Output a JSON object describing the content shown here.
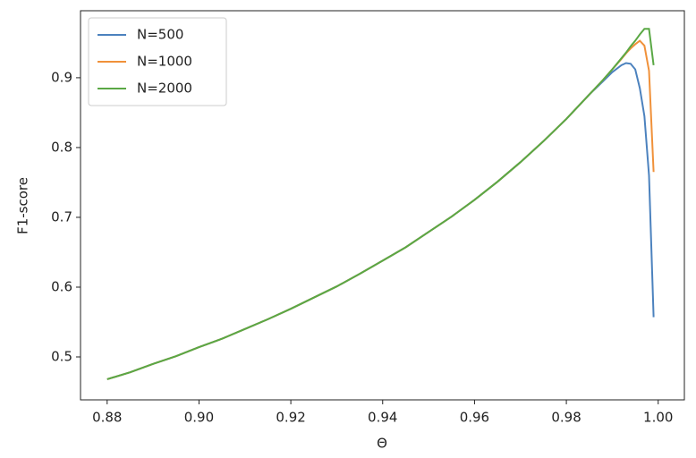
{
  "chart_data": {
    "type": "line",
    "xlabel": "Θ",
    "ylabel": "F1-score",
    "x": [
      0.88,
      0.885,
      0.89,
      0.895,
      0.9,
      0.905,
      0.91,
      0.915,
      0.92,
      0.925,
      0.93,
      0.935,
      0.94,
      0.945,
      0.95,
      0.955,
      0.96,
      0.965,
      0.97,
      0.975,
      0.98,
      0.985,
      0.988,
      0.99,
      0.992,
      0.993,
      0.994,
      0.995,
      0.996,
      0.997,
      0.998,
      0.999
    ],
    "series": [
      {
        "name": "N=500",
        "color": "#4c82be",
        "values": [
          0.468,
          0.478,
          0.49,
          0.501,
          0.514,
          0.526,
          0.54,
          0.554,
          0.569,
          0.585,
          0.601,
          0.619,
          0.638,
          0.657,
          0.679,
          0.701,
          0.725,
          0.751,
          0.779,
          0.809,
          0.841,
          0.876,
          0.895,
          0.908,
          0.918,
          0.921,
          0.92,
          0.912,
          0.885,
          0.845,
          0.76,
          0.557
        ]
      },
      {
        "name": "N=1000",
        "color": "#f0913a",
        "values": [
          0.468,
          0.478,
          0.49,
          0.501,
          0.514,
          0.526,
          0.54,
          0.554,
          0.569,
          0.585,
          0.601,
          0.619,
          0.638,
          0.657,
          0.679,
          0.701,
          0.725,
          0.751,
          0.779,
          0.809,
          0.841,
          0.876,
          0.897,
          0.912,
          0.927,
          0.935,
          0.942,
          0.948,
          0.953,
          0.946,
          0.91,
          0.765
        ]
      },
      {
        "name": "N=2000",
        "color": "#5aa845",
        "values": [
          0.468,
          0.478,
          0.49,
          0.501,
          0.514,
          0.526,
          0.54,
          0.554,
          0.569,
          0.585,
          0.601,
          0.619,
          0.638,
          0.657,
          0.679,
          0.701,
          0.725,
          0.751,
          0.779,
          0.809,
          0.841,
          0.876,
          0.897,
          0.912,
          0.928,
          0.936,
          0.945,
          0.953,
          0.962,
          0.97,
          0.97,
          0.918
        ]
      }
    ],
    "xlim": [
      0.8742,
      1.0057
    ],
    "ylim": [
      0.4385,
      0.996
    ],
    "xticks": [
      0.88,
      {
        "value": 0.9,
        "label": "0.90"
      },
      0.92,
      0.94,
      0.96,
      0.98,
      {
        "value": 1.0,
        "label": "1.00"
      }
    ],
    "yticks": [
      0.5,
      0.6,
      0.7,
      0.8,
      0.9
    ],
    "legend": "upper-left",
    "grid": false
  }
}
